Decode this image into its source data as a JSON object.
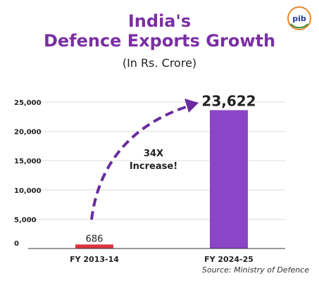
{
  "header": {
    "title_line1": "India's",
    "title_line2": "Defence Exports Growth",
    "subtitle": "(In Rs. Crore)",
    "logo_text": "pib"
  },
  "chart_data": {
    "type": "bar",
    "title": "India's Defence Exports Growth",
    "subtitle": "(In Rs. Crore)",
    "categories": [
      "FY 2013-14",
      "FY 2024-25"
    ],
    "values": [
      686,
      23622
    ],
    "value_labels": [
      "686",
      "23,622"
    ],
    "bar_colors": [
      "#D9363E",
      "#8B45C6"
    ],
    "ylim": [
      0,
      25000
    ],
    "yticks": [
      0,
      5000,
      10000,
      15000,
      20000,
      25000
    ],
    "ytick_labels": [
      "0",
      "5,000",
      "10,000",
      "15,000",
      "20,000",
      "25,000"
    ],
    "grid": true,
    "annotation": {
      "line1": "34X",
      "line2": "Increase!"
    },
    "source": "Source: Ministry of Defence"
  }
}
